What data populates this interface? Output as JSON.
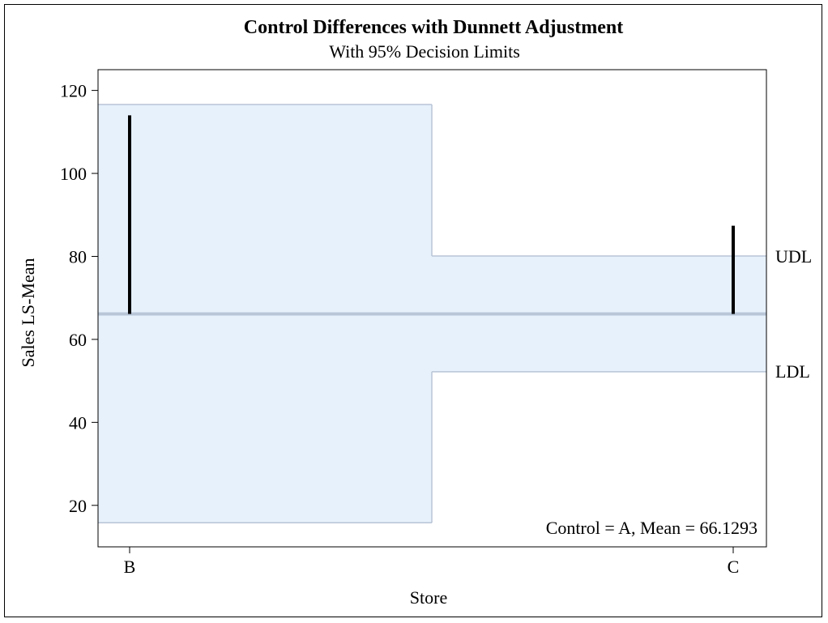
{
  "chart_data": {
    "type": "bar",
    "title": "Control Differences with Dunnett Adjustment",
    "subtitle": "With 95% Decision Limits",
    "xlabel": "Store",
    "ylabel": "Sales LS-Mean",
    "categories": [
      "B",
      "C"
    ],
    "control_mean": 66.1293,
    "values": [
      114,
      87.4
    ],
    "decision_limits": [
      {
        "category": "B",
        "ldl": 15.8,
        "udl": 116.6
      },
      {
        "category": "C",
        "ldl": 52.2,
        "udl": 80.1
      }
    ],
    "ylim": [
      10,
      125
    ],
    "yticks": [
      20,
      40,
      60,
      80,
      100,
      120
    ],
    "limit_labels": {
      "upper": "UDL",
      "lower": "LDL"
    },
    "annotation": "Control = A, Mean = 66.1293",
    "grid": false,
    "colors": {
      "band": "#e6f1fc",
      "band_edge": "#b8c4d6",
      "ref_line": "#b8c6d8",
      "bar": "#000000"
    }
  }
}
